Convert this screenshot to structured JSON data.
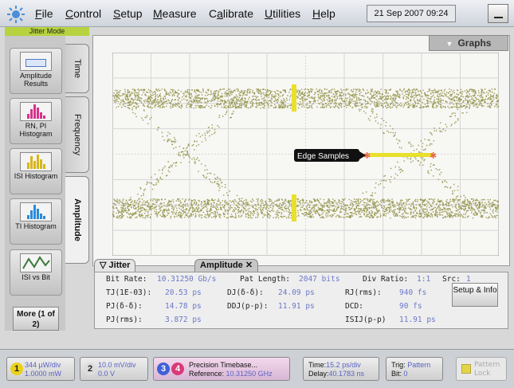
{
  "menubar": {
    "items": [
      {
        "label": "File",
        "key": "F"
      },
      {
        "label": "Control",
        "key": "C"
      },
      {
        "label": "Setup",
        "key": "S"
      },
      {
        "label": "Measure",
        "key": "M"
      },
      {
        "label": "Calibrate",
        "key": "a"
      },
      {
        "label": "Utilities",
        "key": "U"
      },
      {
        "label": "Help",
        "key": "H"
      }
    ],
    "datetime": "21 Sep 2007  09:24"
  },
  "mode_label": "Jitter Mode",
  "left_buttons": [
    {
      "label": "Amplitude Results",
      "icon": "amplitude-results-icon"
    },
    {
      "label": "RN, PI Histogram",
      "icon": "histogram-icon"
    },
    {
      "label": "ISI Histogram",
      "icon": "histogram-icon"
    },
    {
      "label": "TI Histogram",
      "icon": "histogram-icon"
    },
    {
      "label": "ISI vs Bit",
      "icon": "isi-vs-bit-icon"
    }
  ],
  "more_button": "More (1 of 2)",
  "side_tabs": [
    {
      "label": "Time"
    },
    {
      "label": "Frequency"
    },
    {
      "label": "Amplitude",
      "active": true
    }
  ],
  "graphs_label": "Graphs",
  "annotation": "Edge Samples",
  "bottom_tabs": [
    {
      "label": "Jitter",
      "active": true
    },
    {
      "label": "Amplitude",
      "active": false
    }
  ],
  "results": {
    "bit_rate_label": "Bit Rate:",
    "bit_rate_value": "10.31250 Gb/s",
    "pat_length_label": "Pat Length:",
    "pat_length_value": "2047 bits",
    "div_ratio_label": "Div Ratio:",
    "div_ratio_value": "1:1",
    "src_label": "Src:",
    "src_value": "1",
    "tj_label": "TJ(1E-03):",
    "tj_value": "20.53 ps",
    "dj_label": "DJ(δ-δ):",
    "dj_value": "24.09 ps",
    "rj_label": "RJ(rms):",
    "rj_value": "940 fs",
    "pj_label": "PJ(δ-δ):",
    "pj_value": "14.78 ps",
    "ddj_label": "DDJ(p-p):",
    "ddj_value": "11.91 ps",
    "dcd_label": "DCD:",
    "dcd_value": "90 fs",
    "pjrms_label": "PJ(rms):",
    "pjrms_value": "3.872 ps",
    "isij_label": "ISIJ(p-p)",
    "isij_value": "11.91 ps",
    "setup_button": "Setup & Info"
  },
  "status": {
    "ch1": {
      "num": "1",
      "line1": "344 µW/div",
      "line2": "1.0000 mW",
      "color": "#e8d21a"
    },
    "ch2": {
      "num": "2",
      "line1": "10.0 mV/div",
      "line2": "0.0 V",
      "color": "#dddddd"
    },
    "ch34": {
      "num3": "3",
      "num4": "4",
      "line1": "Precision Timebase...",
      "line2_label": "Reference:",
      "line2_value": "10.31250 GHz",
      "color3": "#4060d8",
      "color4": "#d83a7a"
    },
    "time": {
      "line1_label": "Time:",
      "line1_value": "15.2 ps/div",
      "line2_label": "Delay:",
      "line2_value": "40.1783 ns"
    },
    "trig": {
      "line1_label": "Trig:",
      "line1_value": "Pattern",
      "line2_label": "Bit:",
      "line2_value": "0"
    },
    "pattern_lock": "Pattern Lock"
  },
  "colors": {
    "trace": "#8a8a3a",
    "edge_samples": "#e8e02a",
    "edge_marker": "#e86a4a",
    "mode_accent": "#b7d23f"
  }
}
